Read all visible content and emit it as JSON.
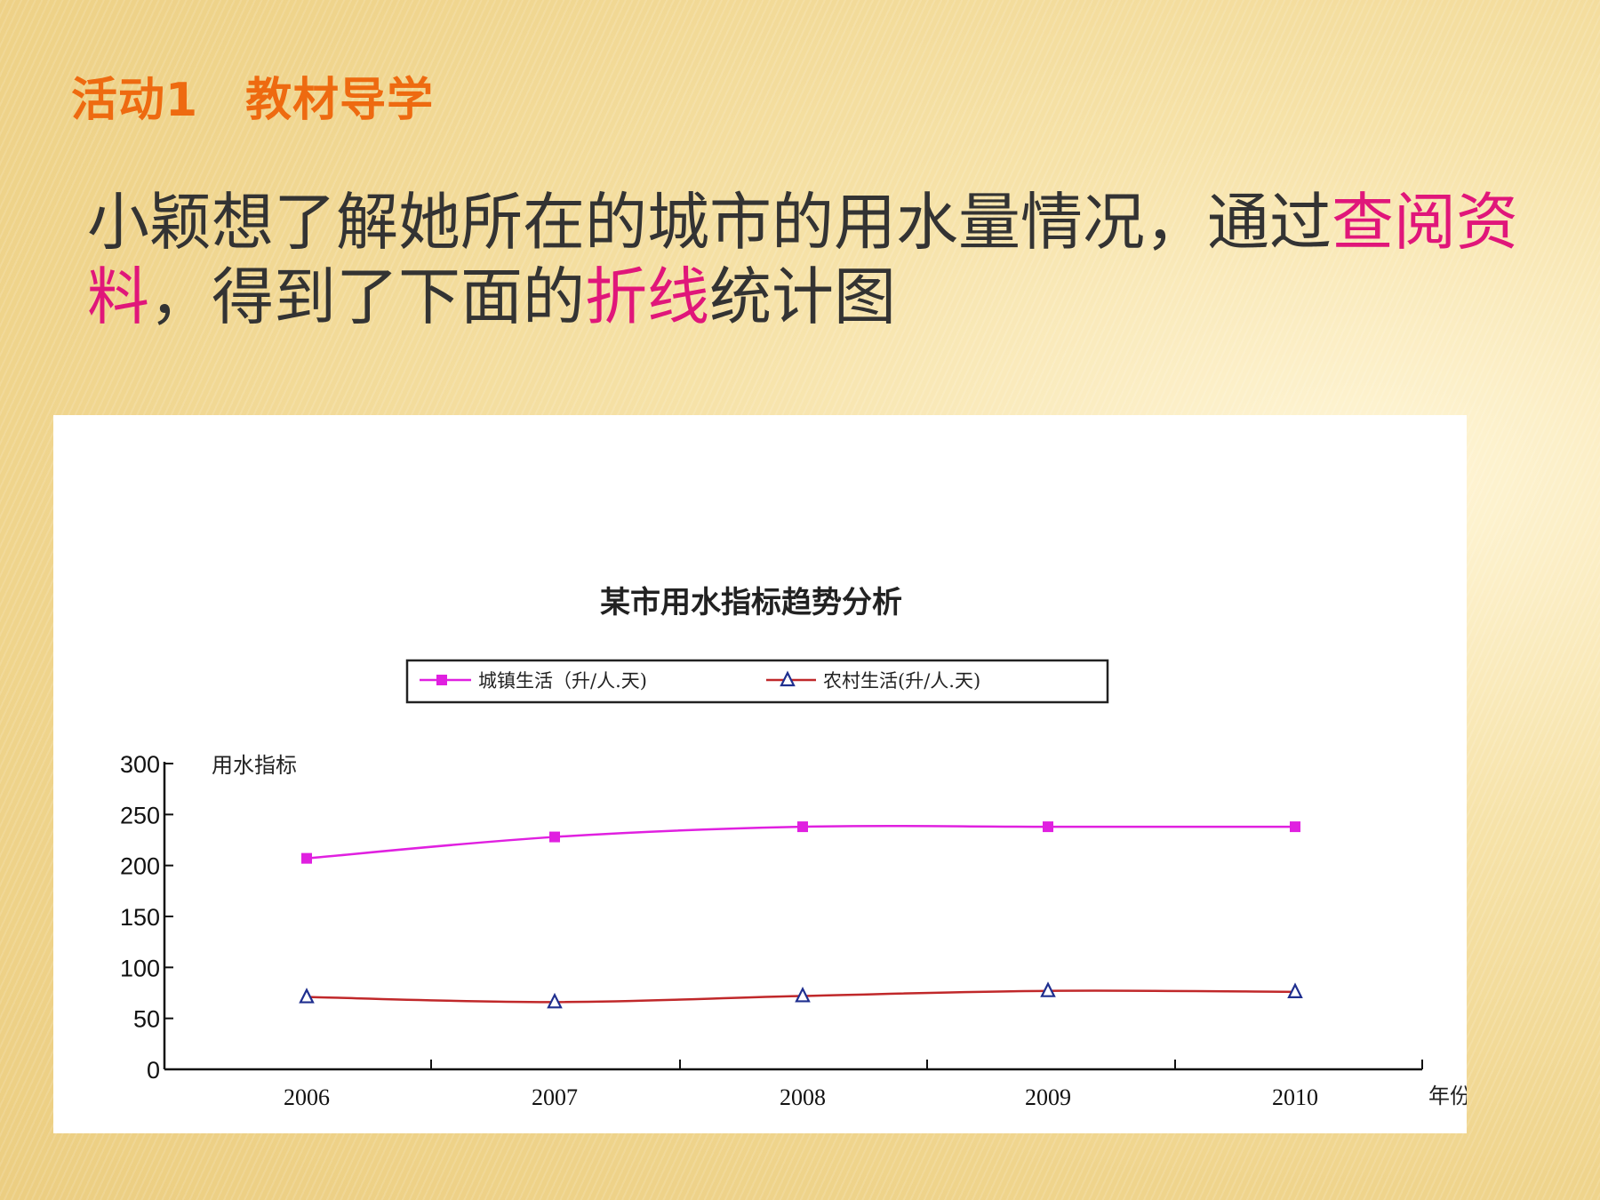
{
  "slide": {
    "heading": "活动1　教材导学",
    "intro_parts": [
      {
        "text": "小颖想了解她所在的城市的用水量情况，通过",
        "hl": false
      },
      {
        "text": "查阅资料",
        "hl": true
      },
      {
        "text": "，得到了下面的",
        "hl": false
      },
      {
        "text": "折线",
        "hl": true
      },
      {
        "text": "统计图",
        "hl": false
      }
    ]
  },
  "colors": {
    "heading": "#ee6a10",
    "highlight": "#e0167a",
    "urban": "#e020e0",
    "rural": "#c0282a",
    "rural_marker": "#1f2f8f"
  },
  "chart_data": {
    "type": "line",
    "title": "某市用水指标趋势分析",
    "ylabel": "用水指标",
    "xlabel": "年份",
    "categories": [
      "2006",
      "2007",
      "2008",
      "2009",
      "2010"
    ],
    "ylim": [
      0,
      300
    ],
    "yticks": [
      0,
      50,
      100,
      150,
      200,
      250,
      300
    ],
    "legend_position": "top-center",
    "series": [
      {
        "name": "城镇生活（升/人.天)",
        "marker": "square",
        "values": [
          207,
          228,
          238,
          238,
          238
        ]
      },
      {
        "name": "农村生活(升/人.天)",
        "marker": "triangle",
        "values": [
          71,
          66,
          72,
          77,
          76
        ]
      }
    ]
  }
}
